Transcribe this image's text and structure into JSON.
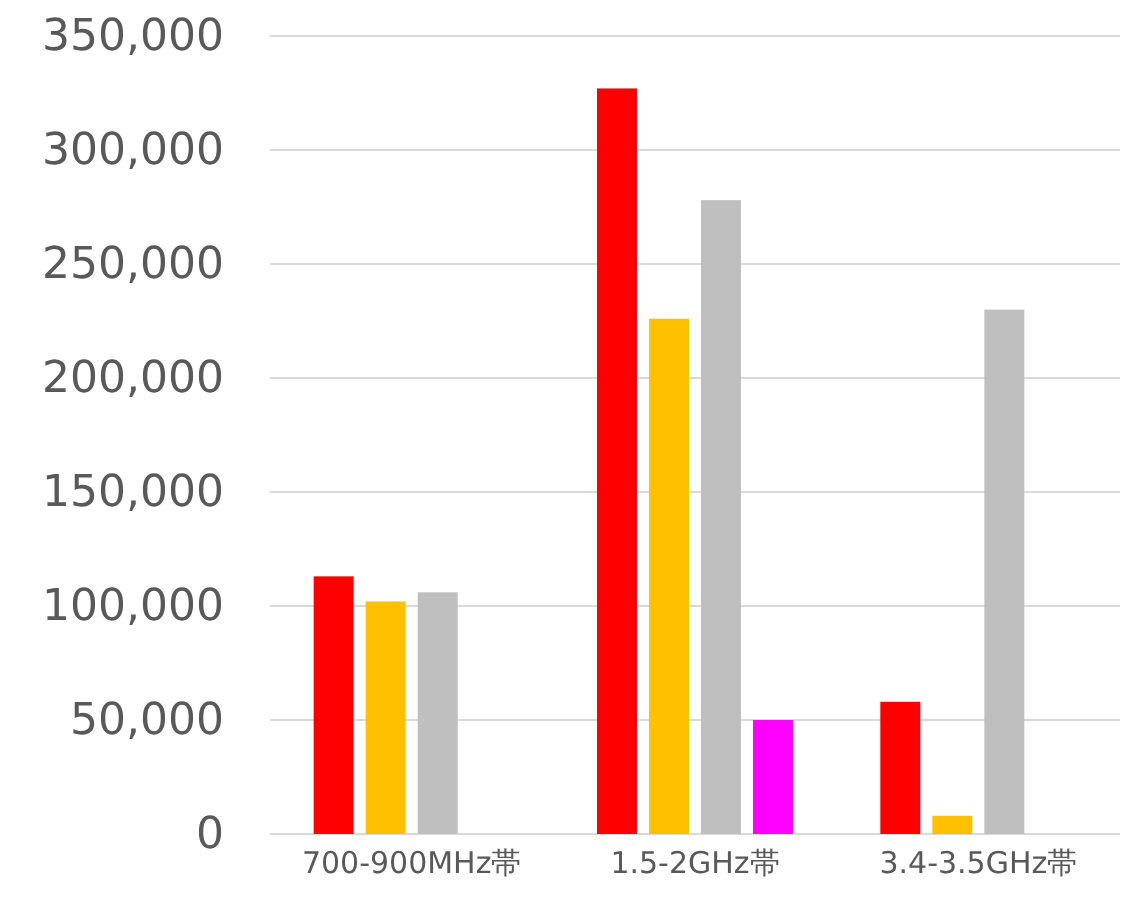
{
  "chart_data": {
    "type": "bar",
    "categories": [
      "700-900MHz帯",
      "1.5-2GHz帯",
      "3.4-3.5GHz帯"
    ],
    "series": [
      {
        "color": "#ff0000",
        "values": [
          113000,
          327000,
          58000
        ]
      },
      {
        "color": "#ffc000",
        "values": [
          102000,
          226000,
          8000
        ]
      },
      {
        "color": "#bfbfbf",
        "values": [
          106000,
          278000,
          230000
        ]
      },
      {
        "color": "#ff00ff",
        "values": [
          null,
          50000,
          null
        ]
      }
    ],
    "ylim": [
      0,
      350000
    ],
    "yticks": [
      {
        "value": 0,
        "label": "0"
      },
      {
        "value": 50000,
        "label": "50,000"
      },
      {
        "value": 100000,
        "label": "100,000"
      },
      {
        "value": 150000,
        "label": "150,000"
      },
      {
        "value": 200000,
        "label": "200,000"
      },
      {
        "value": 250000,
        "label": "250,000"
      },
      {
        "value": 300000,
        "label": "300,000"
      },
      {
        "value": 350000,
        "label": "350,000"
      }
    ],
    "grid": "y"
  }
}
